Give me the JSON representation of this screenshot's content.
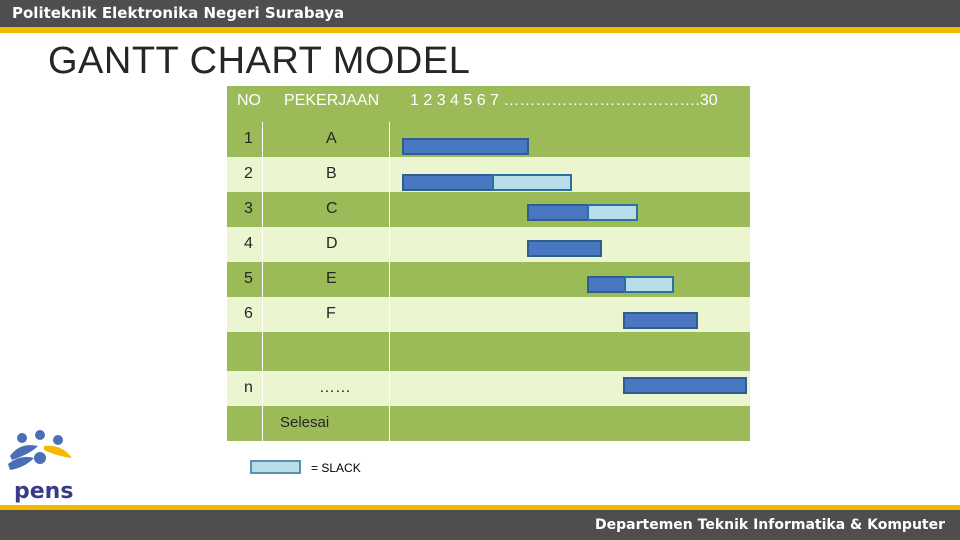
{
  "header": {
    "title": "Politeknik Elektronika Negeri Surabaya"
  },
  "slide": {
    "title": "GANTT CHART MODEL"
  },
  "table": {
    "col_no": "NO",
    "col_job": "PEKERJAAN",
    "col_time": "1 2 3 4 5 6 7 ……………………………….30",
    "rows": [
      {
        "no": "1",
        "job": "A"
      },
      {
        "no": "2",
        "job": "B"
      },
      {
        "no": "3",
        "job": "C"
      },
      {
        "no": "4",
        "job": "D"
      },
      {
        "no": "5",
        "job": "E"
      },
      {
        "no": "6",
        "job": "F"
      },
      {
        "no": "",
        "job": ""
      },
      {
        "no": "n",
        "job": "……"
      }
    ],
    "finish_label": "Selesai"
  },
  "legend": {
    "label": "= SLACK"
  },
  "footer": {
    "title": "Departemen Teknik Informatika & Komputer"
  },
  "colors": {
    "header_bar": "#4e4e4e",
    "accent_stripe": "#f5b800",
    "table_dark": "#9bbb59",
    "table_light": "#ebf5d0",
    "task_bar": "#4a77c2",
    "slack_bar": "#b7dde8"
  },
  "logo": {
    "text": "pens"
  }
}
